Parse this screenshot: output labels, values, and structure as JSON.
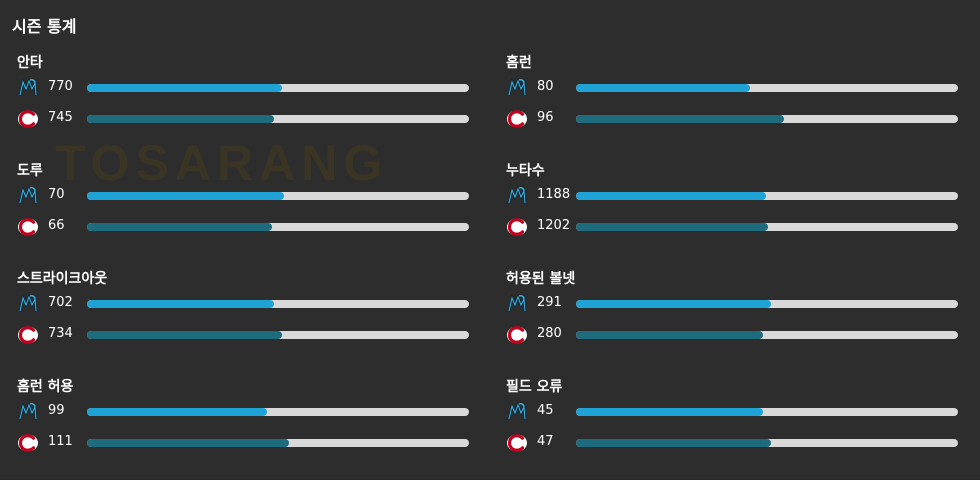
{
  "title": "시즌 통계",
  "watermark": "TOSARANG",
  "colors": {
    "team1_bar": "#1fa3d6",
    "team2_bar": "#1d6b7c",
    "track": "#d9d9d9"
  },
  "teams": {
    "team1_icon": "marlins-logo-icon",
    "team2_icon": "reds-logo-icon"
  },
  "left_stats": [
    {
      "label": "안타",
      "team1": "770",
      "team2": "745",
      "team1_fill": 0.51,
      "team2_fill": 0.49
    },
    {
      "label": "도루",
      "team1": "70",
      "team2": "66",
      "team1_fill": 0.515,
      "team2_fill": 0.485
    },
    {
      "label": "스트라이크아웃",
      "team1": "702",
      "team2": "734",
      "team1_fill": 0.49,
      "team2_fill": 0.51
    },
    {
      "label": "홈런 허용",
      "team1": "99",
      "team2": "111",
      "team1_fill": 0.47,
      "team2_fill": 0.53
    }
  ],
  "right_stats": [
    {
      "label": "홈런",
      "team1": "80",
      "team2": "96",
      "team1_fill": 0.455,
      "team2_fill": 0.545
    },
    {
      "label": "누타수",
      "team1": "1188",
      "team2": "1202",
      "team1_fill": 0.497,
      "team2_fill": 0.503
    },
    {
      "label": "허용된 볼넷",
      "team1": "291",
      "team2": "280",
      "team1_fill": 0.51,
      "team2_fill": 0.49
    },
    {
      "label": "필드 오류",
      "team1": "45",
      "team2": "47",
      "team1_fill": 0.49,
      "team2_fill": 0.51
    }
  ]
}
